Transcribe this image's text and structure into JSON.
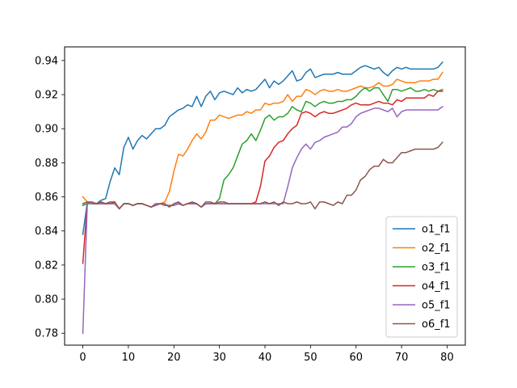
{
  "chart_data": {
    "type": "line",
    "title": "",
    "xlabel": "",
    "ylabel": "",
    "xlim": [
      -4,
      84
    ],
    "ylim": [
      0.773,
      0.948
    ],
    "xticks": [
      0,
      10,
      20,
      30,
      40,
      50,
      60,
      70,
      80
    ],
    "xtick_labels": [
      "0",
      "10",
      "20",
      "30",
      "40",
      "50",
      "60",
      "70",
      "80"
    ],
    "yticks": [
      0.78,
      0.8,
      0.82,
      0.84,
      0.86,
      0.88,
      0.9,
      0.92,
      0.94
    ],
    "ytick_labels": [
      "0.78",
      "0.80",
      "0.82",
      "0.84",
      "0.86",
      "0.88",
      "0.90",
      "0.92",
      "0.94"
    ],
    "grid": false,
    "legend_position": "lower-right",
    "x": [
      0,
      1,
      2,
      3,
      4,
      5,
      6,
      7,
      8,
      9,
      10,
      11,
      12,
      13,
      14,
      15,
      16,
      17,
      18,
      19,
      20,
      21,
      22,
      23,
      24,
      25,
      26,
      27,
      28,
      29,
      30,
      31,
      32,
      33,
      34,
      35,
      36,
      37,
      38,
      39,
      40,
      41,
      42,
      43,
      44,
      45,
      46,
      47,
      48,
      49,
      50,
      51,
      52,
      53,
      54,
      55,
      56,
      57,
      58,
      59,
      60,
      61,
      62,
      63,
      64,
      65,
      66,
      67,
      68,
      69,
      70,
      71,
      72,
      73,
      74,
      75,
      76,
      77,
      78,
      79
    ],
    "series": [
      {
        "name": "o1_f1",
        "color": "#1f77b4",
        "values": [
          0.838,
          0.857,
          0.856,
          0.856,
          0.858,
          0.859,
          0.869,
          0.877,
          0.873,
          0.889,
          0.895,
          0.888,
          0.893,
          0.896,
          0.894,
          0.897,
          0.9,
          0.9,
          0.902,
          0.907,
          0.909,
          0.911,
          0.912,
          0.914,
          0.913,
          0.919,
          0.913,
          0.919,
          0.922,
          0.917,
          0.921,
          0.922,
          0.921,
          0.92,
          0.924,
          0.921,
          0.923,
          0.922,
          0.923,
          0.926,
          0.929,
          0.924,
          0.928,
          0.926,
          0.928,
          0.931,
          0.934,
          0.928,
          0.929,
          0.933,
          0.935,
          0.93,
          0.931,
          0.932,
          0.932,
          0.932,
          0.933,
          0.932,
          0.932,
          0.932,
          0.934,
          0.936,
          0.937,
          0.936,
          0.935,
          0.936,
          0.933,
          0.931,
          0.934,
          0.936,
          0.935,
          0.936,
          0.935,
          0.935,
          0.935,
          0.935,
          0.935,
          0.935,
          0.936,
          0.939
        ]
      },
      {
        "name": "o2_f1",
        "color": "#ff7f0e",
        "values": [
          0.86,
          0.857,
          0.856,
          0.856,
          0.857,
          0.856,
          0.856,
          0.857,
          0.853,
          0.856,
          0.856,
          0.855,
          0.856,
          0.856,
          0.855,
          0.854,
          0.855,
          0.856,
          0.857,
          0.863,
          0.875,
          0.885,
          0.884,
          0.888,
          0.893,
          0.897,
          0.894,
          0.898,
          0.905,
          0.905,
          0.908,
          0.907,
          0.906,
          0.907,
          0.908,
          0.908,
          0.91,
          0.909,
          0.911,
          0.911,
          0.915,
          0.914,
          0.915,
          0.915,
          0.916,
          0.92,
          0.916,
          0.919,
          0.919,
          0.923,
          0.922,
          0.92,
          0.922,
          0.923,
          0.922,
          0.922,
          0.923,
          0.922,
          0.922,
          0.923,
          0.924,
          0.925,
          0.924,
          0.924,
          0.925,
          0.927,
          0.925,
          0.925,
          0.926,
          0.929,
          0.928,
          0.927,
          0.927,
          0.927,
          0.928,
          0.928,
          0.928,
          0.929,
          0.929,
          0.933
        ]
      },
      {
        "name": "o3_f1",
        "color": "#2ca02c",
        "values": [
          0.855,
          0.856,
          0.856,
          0.856,
          0.856,
          0.856,
          0.856,
          0.856,
          0.853,
          0.856,
          0.856,
          0.855,
          0.856,
          0.856,
          0.855,
          0.854,
          0.855,
          0.856,
          0.855,
          0.855,
          0.855,
          0.856,
          0.855,
          0.856,
          0.856,
          0.856,
          0.854,
          0.856,
          0.856,
          0.856,
          0.859,
          0.87,
          0.873,
          0.877,
          0.884,
          0.891,
          0.893,
          0.897,
          0.893,
          0.899,
          0.906,
          0.908,
          0.905,
          0.907,
          0.907,
          0.909,
          0.913,
          0.911,
          0.91,
          0.916,
          0.915,
          0.913,
          0.915,
          0.916,
          0.915,
          0.915,
          0.916,
          0.916,
          0.917,
          0.917,
          0.919,
          0.922,
          0.924,
          0.922,
          0.924,
          0.924,
          0.92,
          0.916,
          0.923,
          0.923,
          0.922,
          0.923,
          0.924,
          0.922,
          0.922,
          0.923,
          0.922,
          0.923,
          0.922,
          0.923
        ]
      },
      {
        "name": "o4_f1",
        "color": "#d62728",
        "values": [
          0.821,
          0.857,
          0.856,
          0.856,
          0.856,
          0.856,
          0.856,
          0.857,
          0.853,
          0.856,
          0.856,
          0.855,
          0.856,
          0.856,
          0.855,
          0.854,
          0.855,
          0.856,
          0.855,
          0.855,
          0.855,
          0.856,
          0.855,
          0.856,
          0.856,
          0.856,
          0.854,
          0.856,
          0.856,
          0.856,
          0.856,
          0.856,
          0.856,
          0.856,
          0.856,
          0.856,
          0.856,
          0.856,
          0.857,
          0.866,
          0.881,
          0.884,
          0.889,
          0.892,
          0.893,
          0.897,
          0.9,
          0.902,
          0.909,
          0.91,
          0.909,
          0.907,
          0.909,
          0.91,
          0.909,
          0.909,
          0.91,
          0.911,
          0.912,
          0.914,
          0.915,
          0.914,
          0.914,
          0.914,
          0.915,
          0.916,
          0.915,
          0.915,
          0.914,
          0.917,
          0.916,
          0.918,
          0.918,
          0.918,
          0.918,
          0.918,
          0.92,
          0.919,
          0.922,
          0.922
        ]
      },
      {
        "name": "o5_f1",
        "color": "#9467bd",
        "values": [
          0.78,
          0.857,
          0.856,
          0.856,
          0.856,
          0.856,
          0.856,
          0.856,
          0.853,
          0.856,
          0.856,
          0.855,
          0.856,
          0.856,
          0.855,
          0.854,
          0.855,
          0.856,
          0.855,
          0.855,
          0.855,
          0.856,
          0.855,
          0.856,
          0.856,
          0.856,
          0.854,
          0.856,
          0.856,
          0.856,
          0.856,
          0.856,
          0.856,
          0.856,
          0.856,
          0.856,
          0.856,
          0.856,
          0.856,
          0.856,
          0.856,
          0.856,
          0.856,
          0.856,
          0.856,
          0.866,
          0.877,
          0.883,
          0.888,
          0.891,
          0.888,
          0.892,
          0.893,
          0.895,
          0.896,
          0.897,
          0.898,
          0.901,
          0.901,
          0.903,
          0.907,
          0.909,
          0.91,
          0.911,
          0.912,
          0.912,
          0.911,
          0.91,
          0.912,
          0.907,
          0.91,
          0.911,
          0.911,
          0.911,
          0.911,
          0.911,
          0.911,
          0.911,
          0.911,
          0.913
        ]
      },
      {
        "name": "o6_f1",
        "color": "#8c564b",
        "values": [
          0.856,
          0.857,
          0.857,
          0.856,
          0.857,
          0.856,
          0.857,
          0.857,
          0.853,
          0.856,
          0.856,
          0.855,
          0.856,
          0.856,
          0.855,
          0.854,
          0.856,
          0.856,
          0.856,
          0.854,
          0.856,
          0.857,
          0.855,
          0.856,
          0.857,
          0.856,
          0.854,
          0.857,
          0.857,
          0.856,
          0.857,
          0.857,
          0.856,
          0.856,
          0.856,
          0.856,
          0.856,
          0.856,
          0.856,
          0.856,
          0.857,
          0.856,
          0.857,
          0.855,
          0.857,
          0.856,
          0.856,
          0.857,
          0.856,
          0.856,
          0.857,
          0.853,
          0.857,
          0.857,
          0.856,
          0.855,
          0.857,
          0.856,
          0.861,
          0.861,
          0.864,
          0.87,
          0.872,
          0.876,
          0.878,
          0.878,
          0.882,
          0.88,
          0.88,
          0.883,
          0.886,
          0.886,
          0.887,
          0.888,
          0.888,
          0.888,
          0.888,
          0.888,
          0.889,
          0.892
        ]
      }
    ]
  }
}
